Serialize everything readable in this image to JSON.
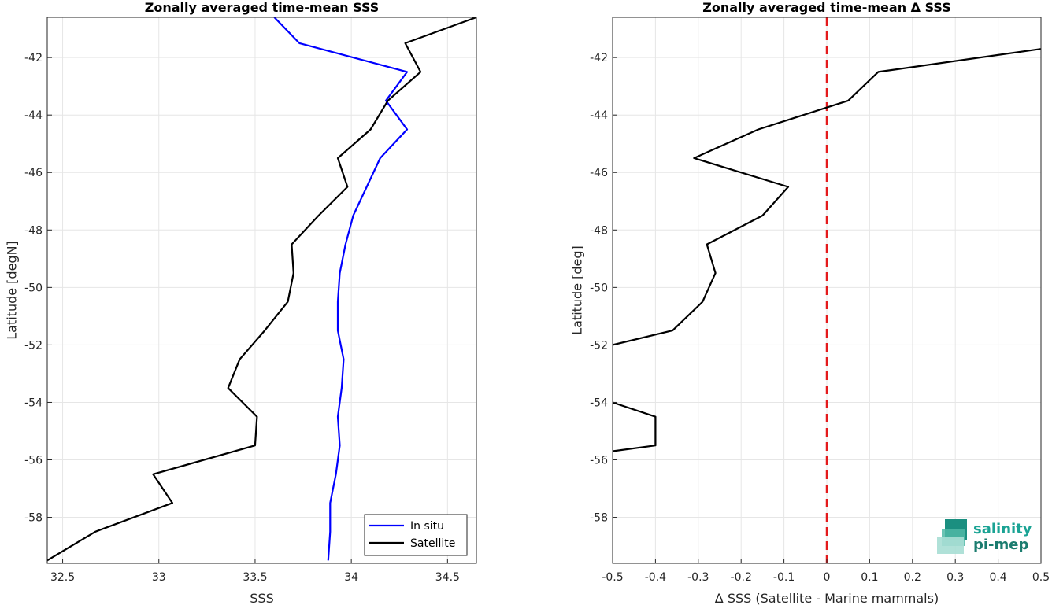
{
  "logo": {
    "line1": "salinity",
    "line2": "pi-mep"
  },
  "chart_data": [
    {
      "type": "line",
      "title": "Zonally averaged time-mean SSS",
      "xlabel": "SSS",
      "ylabel": "Latitude [degN]",
      "xlim": [
        32.42,
        34.65
      ],
      "ylim": [
        -59.6,
        -40.6
      ],
      "xticks": [
        32.5,
        33,
        33.5,
        34,
        34.5
      ],
      "xtick_labels": [
        "32.5",
        "33",
        "33.5",
        "34",
        "34.5"
      ],
      "yticks": [
        -42,
        -44,
        -46,
        -48,
        -50,
        -52,
        -54,
        -56,
        -58
      ],
      "ytick_labels": [
        "-42",
        "-44",
        "-46",
        "-48",
        "-50",
        "-52",
        "-54",
        "-56",
        "-58"
      ],
      "grid": true,
      "legend_position": "bottom-right",
      "series": [
        {
          "name": "In situ",
          "color": "#0000ff",
          "x": [
            33.6,
            33.73,
            34.29,
            34.18,
            34.29,
            34.15,
            34.08,
            34.01,
            33.97,
            33.94,
            33.93,
            33.93,
            33.96,
            33.95,
            33.93,
            33.94,
            33.92,
            33.89,
            33.89,
            33.88
          ],
          "y": [
            -40.6,
            -41.5,
            -42.5,
            -43.5,
            -44.5,
            -45.5,
            -46.5,
            -47.5,
            -48.5,
            -49.5,
            -50.5,
            -51.5,
            -52.5,
            -53.5,
            -54.5,
            -55.5,
            -56.5,
            -57.5,
            -58.5,
            -59.5
          ]
        },
        {
          "name": "Satellite",
          "color": "#000000",
          "x": [
            34.65,
            34.28,
            34.36,
            34.19,
            34.1,
            33.93,
            33.98,
            33.83,
            33.69,
            33.7,
            33.67,
            33.55,
            33.42,
            33.36,
            33.51,
            33.5,
            32.97,
            33.07,
            32.67,
            32.42
          ],
          "y": [
            -40.6,
            -41.5,
            -42.5,
            -43.5,
            -44.5,
            -45.5,
            -46.5,
            -47.5,
            -48.5,
            -49.5,
            -50.5,
            -51.5,
            -52.5,
            -53.5,
            -54.5,
            -55.5,
            -56.5,
            -57.5,
            -58.5,
            -59.5
          ]
        }
      ]
    },
    {
      "type": "line",
      "title": "Zonally averaged time-mean Δ SSS",
      "xlabel": "Δ SSS (Satellite - Marine mammals)",
      "ylabel": "Latitude [deg]",
      "xlim": [
        -0.5,
        0.5
      ],
      "ylim": [
        -59.6,
        -40.6
      ],
      "xticks": [
        -0.5,
        -0.4,
        -0.3,
        -0.2,
        -0.1,
        0,
        0.1,
        0.2,
        0.3,
        0.4,
        0.5
      ],
      "xtick_labels": [
        "-0.5",
        "-0.4",
        "-0.3",
        "-0.2",
        "-0.1",
        "0",
        "0.1",
        "0.2",
        "0.3",
        "0.4",
        "0.5"
      ],
      "yticks": [
        -42,
        -44,
        -46,
        -48,
        -50,
        -52,
        -54,
        -56,
        -58
      ],
      "ytick_labels": [
        "-42",
        "-44",
        "-46",
        "-48",
        "-50",
        "-52",
        "-54",
        "-56",
        "-58"
      ],
      "grid": true,
      "reference_line": {
        "x": 0,
        "color": "#e41a1c",
        "style": "dashed"
      },
      "series": [
        {
          "color": "#000000",
          "segments": [
            {
              "x": [
                0.5,
                0.12,
                0.05,
                -0.16,
                -0.31,
                -0.09,
                -0.15,
                -0.28,
                -0.26,
                -0.29,
                -0.36,
                -0.5
              ],
              "y": [
                -41.7,
                -42.5,
                -43.5,
                -44.5,
                -45.5,
                -46.5,
                -47.5,
                -48.5,
                -49.5,
                -50.5,
                -51.5,
                -52.0
              ]
            },
            {
              "x": [
                -0.5,
                -0.4,
                -0.4,
                -0.5
              ],
              "y": [
                -54.0,
                -54.5,
                -55.5,
                -55.7
              ]
            }
          ]
        }
      ]
    }
  ]
}
